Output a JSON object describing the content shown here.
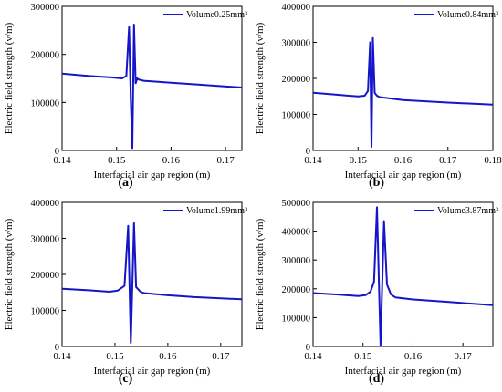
{
  "chart_data": [
    {
      "type": "line",
      "panel_label": "(a)",
      "xlabel": "Interfacial air gap region (m)",
      "ylabel": "Electric field strength (v/m)",
      "xlim": [
        0.14,
        0.173
      ],
      "ylim": [
        0,
        300000
      ],
      "xticks": [
        "0.14",
        "0.15",
        "0.16",
        "0.17"
      ],
      "xtick_values": [
        0.14,
        0.15,
        0.16,
        0.17
      ],
      "yticks": [
        "0",
        "100000",
        "200000",
        "300000"
      ],
      "ytick_values": [
        0,
        100000,
        200000,
        300000
      ],
      "legend_position": "top-right",
      "series": [
        {
          "name": "Volume0.25mm³",
          "color": "#1414c8",
          "x": [
            0.14,
            0.145,
            0.149,
            0.151,
            0.1518,
            0.1523,
            0.1526,
            0.1529,
            0.1532,
            0.1535,
            0.1538,
            0.154,
            0.155,
            0.16,
            0.165,
            0.173
          ],
          "y": [
            160000,
            155000,
            152000,
            150000,
            155000,
            257000,
            110000,
            5000,
            262000,
            140000,
            150000,
            148000,
            145000,
            141000,
            137000,
            131000
          ]
        }
      ]
    },
    {
      "type": "line",
      "panel_label": "(b)",
      "xlabel": "Interfacial air gap region (m)",
      "ylabel": "Electric field strength (v/m)",
      "xlim": [
        0.14,
        0.18
      ],
      "ylim": [
        0,
        400000
      ],
      "xticks": [
        "0.14",
        "0.15",
        "0.16",
        "0.17",
        "0.18"
      ],
      "xtick_values": [
        0.14,
        0.15,
        0.16,
        0.17,
        0.18
      ],
      "yticks": [
        "0",
        "100000",
        "200000",
        "300000",
        "400000"
      ],
      "ytick_values": [
        0,
        100000,
        200000,
        300000,
        400000
      ],
      "legend_position": "top-right",
      "series": [
        {
          "name": "Volume0.84mm³",
          "color": "#1414c8",
          "x": [
            0.14,
            0.145,
            0.15,
            0.1515,
            0.1522,
            0.1527,
            0.153,
            0.1533,
            0.1537,
            0.1542,
            0.1548,
            0.16,
            0.17,
            0.18
          ],
          "y": [
            160000,
            155000,
            150000,
            152000,
            165000,
            300000,
            10000,
            312000,
            160000,
            152000,
            148000,
            140000,
            133000,
            127000
          ]
        }
      ]
    },
    {
      "type": "line",
      "panel_label": "(c)",
      "xlabel": "Interfacial air gap region (m)",
      "ylabel": "Electric field strength (v/m)",
      "xlim": [
        0.14,
        0.174
      ],
      "ylim": [
        0,
        400000
      ],
      "xticks": [
        "0.14",
        "0.15",
        "0.16",
        "0.17"
      ],
      "xtick_values": [
        0.14,
        0.15,
        0.16,
        0.17
      ],
      "yticks": [
        "0",
        "100000",
        "200000",
        "300000",
        "400000"
      ],
      "ytick_values": [
        0,
        100000,
        200000,
        300000,
        400000
      ],
      "legend_position": "top-right",
      "series": [
        {
          "name": "Volume1.99mm³",
          "color": "#1414c8",
          "x": [
            0.14,
            0.145,
            0.149,
            0.1505,
            0.1518,
            0.1525,
            0.153,
            0.1536,
            0.154,
            0.1548,
            0.1555,
            0.16,
            0.165,
            0.174
          ],
          "y": [
            160000,
            156000,
            152000,
            155000,
            168000,
            335000,
            10000,
            342000,
            165000,
            152000,
            148000,
            142000,
            137000,
            131000
          ]
        }
      ]
    },
    {
      "type": "line",
      "panel_label": "(d)",
      "xlabel": "Interfacial air gap region (m)",
      "ylabel": "Electric field strength (v/m)",
      "xlim": [
        0.14,
        0.176
      ],
      "ylim": [
        0,
        500000
      ],
      "xticks": [
        "0.14",
        "0.15",
        "0.16",
        "0.17"
      ],
      "xtick_values": [
        0.14,
        0.15,
        0.16,
        0.17
      ],
      "yticks": [
        "0",
        "100000",
        "200000",
        "300000",
        "400000",
        "500000"
      ],
      "ytick_values": [
        0,
        100000,
        200000,
        300000,
        400000,
        500000
      ],
      "legend_position": "top-right",
      "series": [
        {
          "name": "Volume3.87mm³",
          "color": "#1414c8",
          "x": [
            0.14,
            0.145,
            0.149,
            0.1505,
            0.1515,
            0.1522,
            0.1528,
            0.1535,
            0.1542,
            0.1548,
            0.1556,
            0.1565,
            0.16,
            0.165,
            0.176
          ],
          "y": [
            185000,
            180000,
            175000,
            178000,
            190000,
            225000,
            483000,
            5000,
            435000,
            215000,
            180000,
            170000,
            163000,
            157000,
            143000
          ]
        }
      ]
    }
  ]
}
